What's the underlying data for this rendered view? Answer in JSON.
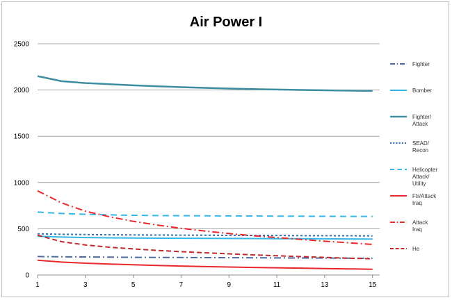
{
  "chart_data": {
    "type": "line",
    "title": "Air Power I",
    "xlabel": "",
    "ylabel": "",
    "x": [
      1,
      2,
      3,
      4,
      5,
      6,
      7,
      8,
      9,
      10,
      11,
      12,
      13,
      14,
      15
    ],
    "xticks": [
      1,
      3,
      5,
      7,
      9,
      11,
      13,
      15
    ],
    "xlim": [
      1,
      15.3
    ],
    "yticks": [
      0,
      500,
      1000,
      1500,
      2000,
      2500
    ],
    "ylim": [
      0,
      2500
    ],
    "grid": true,
    "legend_position": "right",
    "series": [
      {
        "name": "Fighter",
        "legend_lines": [
          "Fighter"
        ],
        "color": "#4e6aa3",
        "dash": "10 4 2 4",
        "width": 2,
        "values": [
          200,
          197,
          195,
          193,
          191,
          190,
          189,
          188,
          187,
          186,
          185,
          184,
          183,
          182,
          181
        ]
      },
      {
        "name": "Bomber",
        "legend_lines": [
          "Bomber"
        ],
        "color": "#35b7e6",
        "dash": "",
        "width": 2,
        "values": [
          420,
          410,
          405,
          402,
          400,
          398,
          397,
          396,
          395,
          394,
          393,
          392,
          391,
          390,
          389
        ]
      },
      {
        "name": "Fighter/ Attack",
        "legend_lines": [
          "Fighter/",
          "Attack"
        ],
        "color": "#3d8ea0",
        "dash": "",
        "width": 2.5,
        "values": [
          2150,
          2095,
          2075,
          2062,
          2050,
          2040,
          2031,
          2023,
          2016,
          2010,
          2005,
          2001,
          1997,
          1993,
          1990
        ]
      },
      {
        "name": "SEAD/ Recon",
        "legend_lines": [
          "SEAD/",
          "Recon"
        ],
        "color": "#2f6fb5",
        "dash": "3 3",
        "width": 2,
        "values": [
          445,
          440,
          437,
          435,
          433,
          432,
          431,
          430,
          429,
          428,
          427,
          426,
          425,
          424,
          423
        ]
      },
      {
        "name": "Helicopter Attack/ Utility",
        "legend_lines": [
          "Helicopter",
          "Attack/",
          "Utility"
        ],
        "color": "#35b7e6",
        "dash": "9 6",
        "width": 2,
        "values": [
          680,
          665,
          656,
          650,
          646,
          643,
          641,
          640,
          639,
          638,
          637,
          636,
          635,
          634,
          633
        ]
      },
      {
        "name": "Ftr/Attack Iraq",
        "legend_lines": [
          "Ftr/Attack",
          "Iraq"
        ],
        "color": "#e8282b",
        "dash": "",
        "width": 2,
        "values": [
          160,
          140,
          128,
          118,
          110,
          103,
          97,
          91,
          86,
          82,
          78,
          74,
          70,
          66,
          62
        ]
      },
      {
        "name": "Attack Iraq",
        "legend_lines": [
          "Attack",
          "Iraq"
        ],
        "color": "#e8282b",
        "dash": "10 4 2 4",
        "width": 2,
        "values": [
          910,
          780,
          690,
          630,
          580,
          540,
          505,
          475,
          448,
          425,
          405,
          385,
          365,
          348,
          330
        ]
      },
      {
        "name": "He",
        "legend_lines": [
          "He"
        ],
        "color": "#c0282b",
        "dash": "7 4",
        "width": 2,
        "values": [
          430,
          360,
          325,
          300,
          282,
          266,
          252,
          240,
          229,
          218,
          208,
          199,
          190,
          182,
          175
        ]
      }
    ]
  }
}
